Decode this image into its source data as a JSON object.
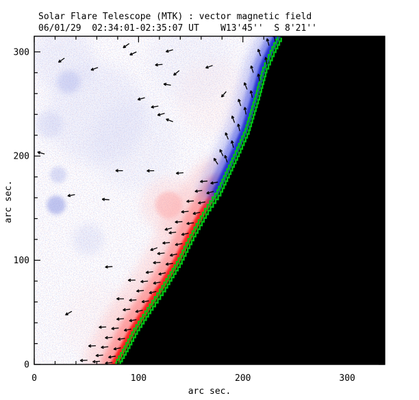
{
  "header": {
    "title": "Solar Flare Telescope (MTK) : vector magnetic field",
    "subtitle": "06/01/29  02:34:01-02:35:07 UT    W13'45''  S 8'21''"
  },
  "axes": {
    "xlabel": "arc sec.",
    "ylabel": "arc sec.",
    "x_ticks": [
      0,
      100,
      200,
      300
    ],
    "y_ticks": [
      0,
      100,
      200,
      300
    ],
    "minor_step": 20,
    "x_range": [
      0,
      336
    ],
    "y_range": [
      0,
      315
    ]
  },
  "chart_data": {
    "type": "heatmap",
    "subtype": "solar-vector-magnetogram-with-vector-arrows",
    "title": "Solar Flare Telescope (MTK) : vector magnetic field",
    "timestamp": "06/01/29  02:34:01-02:35:07 UT",
    "pointing": "W13'45''  S 8'21''",
    "xlabel": "arc sec.",
    "ylabel": "arc sec.",
    "x_range": [
      0,
      336
    ],
    "y_range": [
      0,
      315
    ],
    "grid": false,
    "legend": "none",
    "colors": {
      "background": "#ffffff",
      "sky": "#000000",
      "frame": "#000000",
      "arrow": "#000000",
      "contour_green": "#00c414",
      "contour_green_dark": "#0f9a10",
      "noise_blue": "#9ea8ea",
      "noise_red": "#f5a0a0"
    },
    "limb_arcsec": [
      [
        80,
        0
      ],
      [
        89,
        16
      ],
      [
        98,
        33
      ],
      [
        113,
        56
      ],
      [
        125,
        74
      ],
      [
        139,
        97
      ],
      [
        152,
        123
      ],
      [
        166,
        148
      ],
      [
        178,
        166
      ],
      [
        194,
        200
      ],
      [
        205,
        225
      ],
      [
        215,
        258
      ],
      [
        222,
        284
      ],
      [
        229,
        300
      ],
      [
        236,
        314
      ]
    ],
    "bands": {
      "blue": {
        "y_range": [
          176,
          315
        ],
        "layers": [
          {
            "w": 64,
            "c": "#6a76e8",
            "o": 0.28,
            "b": 6
          },
          {
            "w": 38,
            "c": "#4553e2",
            "o": 0.5,
            "b": 3
          },
          {
            "w": 20,
            "c": "#2433d2",
            "o": 0.95,
            "b": 1.5
          }
        ]
      },
      "red": {
        "y_range": [
          0,
          186
        ],
        "layers": [
          {
            "w": 100,
            "c": "#ffb2b2",
            "o": 0.3,
            "b": 7
          },
          {
            "w": 50,
            "c": "#ff7272",
            "o": 0.55,
            "b": 4
          },
          {
            "w": 20,
            "c": "#ff1e1e",
            "o": 0.95,
            "b": 1.5
          }
        ]
      }
    },
    "tint_blobs": [
      {
        "x": 21,
        "y": 153,
        "r": 9,
        "c": "#8590e2",
        "o": 0.5,
        "b": 3
      },
      {
        "x": 23,
        "y": 182,
        "r": 8,
        "c": "#98a2e8",
        "o": 0.32,
        "b": 3
      },
      {
        "x": 33,
        "y": 271,
        "r": 11,
        "c": "#98a2e8",
        "o": 0.28,
        "b": 4
      },
      {
        "x": 14,
        "y": 230,
        "r": 13,
        "c": "#9ca6e8",
        "o": 0.2,
        "b": 5
      },
      {
        "x": 52,
        "y": 120,
        "r": 15,
        "c": "#9ca6e8",
        "o": 0.16,
        "b": 6
      },
      {
        "x": 60,
        "y": 240,
        "r": 48,
        "c": "#a4acec",
        "o": 0.13,
        "b": 10
      },
      {
        "x": 28,
        "y": 292,
        "r": 30,
        "c": "#a4acec",
        "o": 0.12,
        "b": 8
      },
      {
        "x": 95,
        "y": 210,
        "r": 42,
        "c": "#aab2ec",
        "o": 0.09,
        "b": 10
      },
      {
        "x": 150,
        "y": 290,
        "r": 40,
        "c": "#aab2ec",
        "o": 0.08,
        "b": 10
      },
      {
        "x": 129,
        "y": 153,
        "r": 13,
        "c": "#ff8e8e",
        "o": 0.4,
        "b": 3
      },
      {
        "x": 129,
        "y": 153,
        "r": 26,
        "c": "#ffb4b4",
        "o": 0.22,
        "b": 7
      },
      {
        "x": 152,
        "y": 46,
        "r": 46,
        "c": "#ffc2c2",
        "o": 0.15,
        "b": 10
      },
      {
        "x": 104,
        "y": 26,
        "r": 40,
        "c": "#ffcaca",
        "o": 0.13,
        "b": 10
      },
      {
        "x": 172,
        "y": 256,
        "r": 36,
        "c": "#ffcaca",
        "o": 0.1,
        "b": 9
      },
      {
        "x": 62,
        "y": 42,
        "r": 36,
        "c": "#ffd2d2",
        "o": 0.09,
        "b": 9
      },
      {
        "x": 115,
        "y": 8,
        "r": 50,
        "c": "#ffc6c6",
        "o": 0.12,
        "b": 10
      }
    ],
    "arrows": [
      [
        29,
        294,
        215
      ],
      [
        61,
        285,
        200
      ],
      [
        91,
        308,
        215
      ],
      [
        98,
        300,
        205
      ],
      [
        123,
        288,
        185
      ],
      [
        171,
        287,
        200
      ],
      [
        133,
        302,
        195
      ],
      [
        139,
        282,
        220
      ],
      [
        106,
        256,
        195
      ],
      [
        131,
        268,
        170
      ],
      [
        184,
        262,
        230
      ],
      [
        119,
        248,
        190
      ],
      [
        125,
        241,
        195
      ],
      [
        133,
        233,
        160
      ],
      [
        85,
        186,
        180
      ],
      [
        115,
        186,
        182
      ],
      [
        143,
        184,
        185
      ],
      [
        72,
        158,
        175
      ],
      [
        39,
        163,
        190
      ],
      [
        132,
        131,
        195
      ],
      [
        118,
        112,
        200
      ],
      [
        10,
        202,
        165
      ],
      [
        36,
        51,
        210
      ],
      [
        75,
        94,
        185
      ],
      [
        225,
        306,
        105
      ],
      [
        231,
        310,
        100
      ],
      [
        217,
        296,
        110
      ],
      [
        223,
        288,
        100
      ],
      [
        210,
        280,
        108
      ],
      [
        216,
        272,
        100
      ],
      [
        204,
        264,
        112
      ],
      [
        209,
        256,
        102
      ],
      [
        198,
        248,
        108
      ],
      [
        203,
        240,
        100
      ],
      [
        192,
        232,
        110
      ],
      [
        197,
        224,
        103
      ],
      [
        186,
        216,
        112
      ],
      [
        191,
        208,
        104
      ],
      [
        181,
        200,
        115
      ],
      [
        176,
        192,
        122
      ],
      [
        185,
        194,
        108
      ],
      [
        176,
        175,
        190
      ],
      [
        166,
        176,
        185
      ],
      [
        172,
        166,
        195
      ],
      [
        161,
        167,
        188
      ],
      [
        164,
        156,
        190
      ],
      [
        153,
        157,
        185
      ],
      [
        159,
        146,
        192
      ],
      [
        148,
        147,
        186
      ],
      [
        153,
        136,
        188
      ],
      [
        142,
        137,
        183
      ],
      [
        148,
        126,
        193
      ],
      [
        136,
        127,
        187
      ],
      [
        142,
        116,
        190
      ],
      [
        130,
        117,
        185
      ],
      [
        137,
        106,
        192
      ],
      [
        125,
        107,
        186
      ],
      [
        133,
        97,
        188
      ],
      [
        121,
        98,
        184
      ],
      [
        126,
        88,
        193
      ],
      [
        114,
        89,
        187
      ],
      [
        121,
        79,
        190
      ],
      [
        109,
        80,
        185
      ],
      [
        97,
        81,
        182
      ],
      [
        117,
        70,
        192
      ],
      [
        105,
        71,
        186
      ],
      [
        110,
        61,
        188
      ],
      [
        98,
        62,
        184
      ],
      [
        86,
        63,
        180
      ],
      [
        104,
        52,
        192
      ],
      [
        92,
        53,
        186
      ],
      [
        98,
        43,
        190
      ],
      [
        86,
        44,
        185
      ],
      [
        93,
        34,
        192
      ],
      [
        81,
        35,
        186
      ],
      [
        69,
        36,
        183
      ],
      [
        87,
        25,
        188
      ],
      [
        75,
        26,
        184
      ],
      [
        83,
        16,
        192
      ],
      [
        71,
        17,
        186
      ],
      [
        59,
        18,
        183
      ],
      [
        78,
        8,
        190
      ],
      [
        66,
        9,
        185
      ],
      [
        75,
        2,
        188
      ],
      [
        63,
        3,
        184
      ],
      [
        51,
        4,
        182
      ]
    ]
  }
}
